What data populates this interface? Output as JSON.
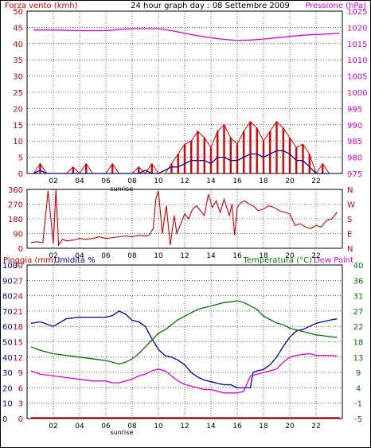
{
  "header": {
    "left_label": "Forza vento (kmh)",
    "title": "24 hour graph day : 08 Settembre 2009",
    "right_label": "Pressione (hPa)"
  },
  "panel3_header": {
    "rain_label": "Pioggia (mm)",
    "humidity_label": "Umidita %",
    "temp_label": "Temperatura (°C)",
    "dew_label": "Dew Point"
  },
  "colors": {
    "wind": "#dd0000",
    "wind_avg": "#0000aa",
    "pressure": "#dd00dd",
    "direction": "#cc0000",
    "humidity": "#0000aa",
    "temperature": "#007700",
    "dewpoint": "#dd00dd",
    "rain": "#cc0000",
    "grid": "#000000",
    "frame": "#000000"
  },
  "chart_data": [
    {
      "type": "line",
      "name": "wind-pressure",
      "x_ticks": [
        "02",
        "04",
        "06",
        "08",
        "10",
        "12",
        "14",
        "16",
        "18",
        "20",
        "22"
      ],
      "x_marker": "sunrise",
      "y_left_ticks": [
        "0",
        "5",
        "10",
        "15",
        "20",
        "25",
        "30",
        "35",
        "40",
        "45",
        "50"
      ],
      "y_right_ticks": [
        "975",
        "980",
        "985",
        "990",
        "995",
        "1000",
        "1005",
        "1010",
        "1015",
        "1020",
        "1025"
      ],
      "ylim_left": [
        0,
        50
      ],
      "ylim_right": [
        975,
        1025
      ],
      "grid": true,
      "series": [
        {
          "name": "Forza vento (kmh)",
          "axis": "left",
          "x": [
            0.5,
            1,
            1.5,
            2,
            2.5,
            3,
            3.5,
            4,
            4.5,
            5,
            5.5,
            6,
            6.5,
            7,
            7.5,
            8,
            8.5,
            9,
            9.5,
            10,
            10.5,
            11,
            11.5,
            12,
            12.5,
            13,
            13.5,
            14,
            14.5,
            15,
            15.5,
            16,
            16.5,
            17,
            17.5,
            18,
            18.5,
            19,
            19.5,
            20,
            20.5,
            21,
            21.5,
            22,
            22.5,
            23
          ],
          "values": [
            0,
            3,
            0,
            0,
            0,
            0,
            2,
            0,
            3,
            0,
            0,
            0,
            3,
            0,
            0,
            0,
            2,
            0,
            3,
            0,
            0,
            3,
            6,
            9,
            10,
            13,
            11,
            8,
            13,
            15,
            11,
            9,
            13,
            16,
            14,
            10,
            13,
            16,
            14,
            11,
            8,
            9,
            6,
            0,
            3,
            0
          ]
        },
        {
          "name": "Wind average",
          "axis": "left",
          "x": [
            0.5,
            1,
            1.5,
            2,
            2.5,
            3,
            3.5,
            4,
            4.5,
            5,
            5.5,
            6,
            6.5,
            7,
            7.5,
            8,
            8.5,
            9,
            9.5,
            10,
            10.5,
            11,
            11.5,
            12,
            12.5,
            13,
            13.5,
            14,
            14.5,
            15,
            15.5,
            16,
            16.5,
            17,
            17.5,
            18,
            18.5,
            19,
            19.5,
            20,
            20.5,
            21,
            21.5,
            22,
            22.5,
            23
          ],
          "values": [
            0,
            1,
            0,
            0,
            0,
            0,
            0,
            0,
            0,
            0,
            0,
            0,
            0,
            0,
            0,
            0,
            0,
            1,
            0,
            0,
            1,
            2,
            2,
            3,
            4,
            4,
            4,
            3,
            5,
            5,
            4,
            4,
            5,
            6,
            6,
            5,
            6,
            7,
            7,
            6,
            4,
            4,
            2,
            0,
            0,
            0
          ]
        },
        {
          "name": "Pressione (hPa)",
          "axis": "right",
          "x": [
            0.5,
            2,
            4,
            6,
            8,
            10,
            11,
            12,
            13,
            14,
            15,
            16,
            17,
            18,
            19,
            20,
            21,
            22,
            23,
            23.8
          ],
          "values": [
            1019.2,
            1019.2,
            1019.0,
            1019.0,
            1019.6,
            1019.6,
            1019.0,
            1018.2,
            1017.4,
            1016.8,
            1016.3,
            1016.0,
            1016.1,
            1016.4,
            1016.8,
            1017.2,
            1017.6,
            1017.8,
            1018.0,
            1018.2
          ]
        }
      ]
    },
    {
      "type": "line",
      "name": "wind-direction",
      "x_ticks": [
        "02",
        "04",
        "06",
        "08",
        "10",
        "12",
        "14",
        "16",
        "18",
        "20",
        "22"
      ],
      "y_left_ticks": [
        "0",
        "90",
        "180",
        "270",
        "360"
      ],
      "y_right_ticks": [
        "N",
        "E",
        "S",
        "W",
        "N"
      ],
      "ylim": [
        0,
        360
      ],
      "grid": true,
      "series": [
        {
          "name": "Direction",
          "x": [
            0.3,
            0.7,
            1.2,
            1.6,
            2.0,
            2.2,
            2.4,
            2.7,
            3.0,
            3.5,
            4.0,
            4.5,
            5.0,
            5.5,
            6.0,
            6.5,
            7.0,
            7.5,
            8.0,
            8.5,
            9.0,
            9.3,
            9.6,
            9.8,
            10.0,
            10.3,
            10.6,
            10.9,
            11.2,
            11.4,
            11.7,
            12.0,
            12.3,
            12.6,
            12.9,
            13.2,
            13.5,
            13.8,
            14.1,
            14.4,
            14.7,
            15.0,
            15.2,
            15.4,
            15.6,
            15.8,
            16.0,
            16.3,
            16.6,
            16.9,
            17.2,
            17.6,
            18.0,
            18.4,
            18.8,
            19.2,
            19.6,
            20.0,
            20.4,
            20.8,
            21.2,
            21.6,
            22.0,
            22.4,
            22.8,
            23.2,
            23.6
          ],
          "values": [
            35,
            40,
            35,
            350,
            30,
            360,
            20,
            55,
            45,
            50,
            60,
            55,
            60,
            70,
            60,
            65,
            70,
            75,
            70,
            80,
            75,
            80,
            120,
            300,
            350,
            90,
            260,
            20,
            200,
            90,
            150,
            210,
            180,
            240,
            260,
            230,
            200,
            330,
            250,
            290,
            220,
            300,
            250,
            200,
            270,
            80,
            250,
            280,
            290,
            270,
            260,
            230,
            240,
            260,
            250,
            230,
            220,
            210,
            140,
            150,
            130,
            120,
            140,
            130,
            170,
            180,
            220
          ]
        }
      ]
    },
    {
      "type": "line",
      "name": "rain-humidity-temperature",
      "x_ticks": [
        "02",
        "04",
        "06",
        "08",
        "10",
        "12",
        "14",
        "16",
        "18",
        "20",
        "22"
      ],
      "x_marker": "sunrise",
      "y_left_rain_ticks": [
        "0",
        "3",
        "6",
        "9",
        "12",
        "15",
        "18",
        "21",
        "24",
        "27",
        "30"
      ],
      "y_left_humidity_ticks": [
        "0",
        "10",
        "20",
        "30",
        "40",
        "50",
        "60",
        "70",
        "80",
        "90",
        "100"
      ],
      "y_right_ticks": [
        "-5",
        "-1",
        "4",
        "9",
        "13",
        "18",
        "22",
        "27",
        "31",
        "36",
        "40"
      ],
      "ylim_rain": [
        0,
        30
      ],
      "ylim_humidity": [
        0,
        100
      ],
      "ylim_temp": [
        -5,
        40
      ],
      "grid": true,
      "series": [
        {
          "name": "Pioggia (mm)",
          "axis": "rain",
          "x": [
            0.3,
            23.8
          ],
          "values": [
            0,
            0
          ]
        },
        {
          "name": "Umidita %",
          "axis": "humidity",
          "x": [
            0.3,
            1,
            2,
            3,
            4,
            5,
            6,
            6.5,
            7,
            7.5,
            8,
            8.5,
            9,
            9.5,
            10,
            10.5,
            11,
            11.5,
            12,
            12.5,
            13,
            13.5,
            14,
            14.5,
            15,
            15.5,
            16,
            16.5,
            17,
            17.2,
            17.5,
            18,
            18.5,
            19,
            19.5,
            20,
            20.5,
            21,
            21.5,
            22,
            22.5,
            23,
            23.6
          ],
          "values": [
            62,
            63,
            60,
            65,
            66,
            66,
            66,
            67,
            70,
            68,
            64,
            63,
            60,
            52,
            45,
            41,
            40,
            38,
            35,
            30,
            27,
            25,
            24,
            23,
            22,
            22,
            20,
            20,
            20,
            30,
            31,
            32,
            35,
            40,
            47,
            53,
            57,
            58,
            60,
            62,
            63,
            64,
            65
          ]
        },
        {
          "name": "Temperatura (°C)",
          "axis": "temp",
          "x": [
            0.3,
            1,
            2,
            3,
            4,
            5,
            6,
            6.5,
            7,
            7.5,
            8,
            8.5,
            9,
            9.5,
            10,
            10.5,
            11,
            11.5,
            12,
            12.5,
            13,
            13.5,
            14,
            14.5,
            15,
            15.5,
            16,
            16.5,
            17,
            17.5,
            18,
            18.5,
            19,
            19.5,
            20,
            20.5,
            21,
            21.5,
            22,
            22.5,
            23,
            23.6
          ],
          "values": [
            16,
            15,
            14,
            13.5,
            13,
            12.5,
            12,
            11.5,
            11,
            11.5,
            12.5,
            14,
            16,
            18,
            20,
            21,
            22.5,
            24,
            25,
            26,
            27,
            27.5,
            28,
            28.5,
            29,
            29.2,
            29.5,
            29,
            28,
            27,
            25,
            24,
            23,
            22.5,
            21.5,
            21,
            20.5,
            20,
            19.5,
            19.3,
            19,
            18.8
          ]
        },
        {
          "name": "Dew Point",
          "axis": "temp",
          "x": [
            0.3,
            1,
            2,
            3,
            4,
            5,
            6,
            6.5,
            7,
            7.5,
            8,
            8.5,
            9,
            9.5,
            10,
            10.5,
            11,
            11.5,
            12,
            12.5,
            13,
            13.5,
            14,
            14.5,
            15,
            15.5,
            16,
            16.5,
            17,
            17.5,
            18,
            18.5,
            19,
            19.5,
            20,
            20.5,
            21,
            21.5,
            22,
            22.5,
            23,
            23.6
          ],
          "values": [
            9,
            8,
            7.5,
            7,
            6.5,
            6,
            6,
            5.5,
            5.5,
            6,
            6.5,
            7.5,
            8,
            9,
            9.5,
            9,
            7.5,
            6,
            5,
            4.5,
            4,
            3.5,
            3.5,
            3,
            2.5,
            2.5,
            2.5,
            3,
            7.5,
            8,
            8.5,
            9,
            9.5,
            11.5,
            13,
            13.5,
            13.8,
            14,
            13.5,
            13.5,
            13.5,
            13.3
          ]
        }
      ]
    }
  ]
}
